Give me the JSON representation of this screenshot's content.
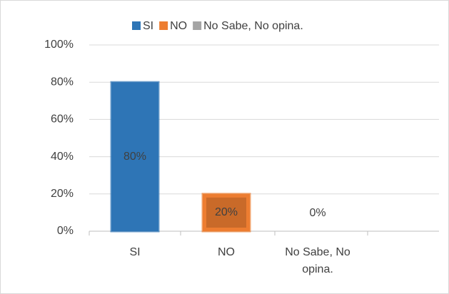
{
  "chart_data": {
    "type": "bar",
    "categories": [
      "SI",
      "NO",
      "No Sabe, No opina."
    ],
    "values": [
      80,
      20,
      0
    ],
    "value_labels": [
      "80%",
      "20%",
      "0%"
    ],
    "colors": [
      "#2e75b6",
      "#ed7d31",
      "#a5a5a5"
    ],
    "ylim": [
      0,
      100
    ],
    "yticks": [
      {
        "value": 0,
        "label": "0%"
      },
      {
        "value": 20,
        "label": "20%"
      },
      {
        "value": 40,
        "label": "40%"
      },
      {
        "value": 60,
        "label": "60%"
      },
      {
        "value": 80,
        "label": "80%"
      },
      {
        "value": 100,
        "label": "100%"
      }
    ],
    "grid": true,
    "legend": "top"
  }
}
